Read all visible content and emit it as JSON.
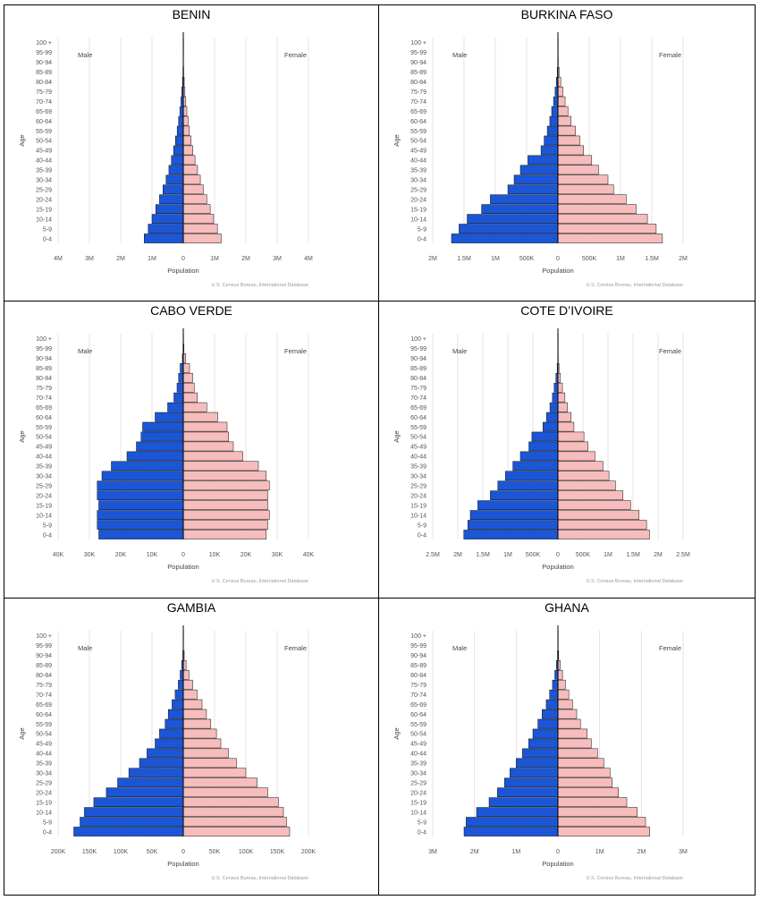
{
  "colors": {
    "male": "#1a56d6",
    "female": "#f7bcbc",
    "bar_outline": "#111111",
    "grid": "#dddddd"
  },
  "age_groups": [
    "0-4",
    "5-9",
    "10-14",
    "15-19",
    "20-24",
    "25-29",
    "30-34",
    "35-39",
    "40-44",
    "45-49",
    "50-54",
    "55-59",
    "60-64",
    "65-69",
    "70-74",
    "75-79",
    "80-84",
    "85-89",
    "90-94",
    "95-99",
    "100 +"
  ],
  "shared_labels": {
    "male": "Male",
    "female": "Female",
    "y_axis": "Age",
    "x_axis": "Population",
    "source": "U.S. Census Bureau, International Database"
  },
  "chart_data": [
    {
      "type": "bar",
      "title": "BENIN",
      "xlabel": "Population",
      "ylabel": "Age",
      "xlim": [
        -4000000,
        4000000
      ],
      "x_ticks": [
        -4000000,
        -3000000,
        -2000000,
        -1000000,
        0,
        1000000,
        2000000,
        3000000,
        4000000
      ],
      "x_tick_labels": [
        "4M",
        "3M",
        "2M",
        "1M",
        "0",
        "1M",
        "2M",
        "3M",
        "4M"
      ],
      "categories": [
        "0-4",
        "5-9",
        "10-14",
        "15-19",
        "20-24",
        "25-29",
        "30-34",
        "35-39",
        "40-44",
        "45-49",
        "50-54",
        "55-59",
        "60-64",
        "65-69",
        "70-74",
        "75-79",
        "80-84",
        "85-89",
        "90-94",
        "95-99",
        "100 +"
      ],
      "series": [
        {
          "name": "Male",
          "values": [
            1250000,
            1120000,
            1000000,
            880000,
            760000,
            650000,
            550000,
            460000,
            380000,
            310000,
            250000,
            195000,
            150000,
            110000,
            75000,
            48000,
            26000,
            11000,
            4000,
            1000,
            200
          ]
        },
        {
          "name": "Female",
          "values": [
            1210000,
            1090000,
            970000,
            860000,
            750000,
            640000,
            545000,
            455000,
            375000,
            305000,
            250000,
            195000,
            155000,
            115000,
            80000,
            52000,
            30000,
            13000,
            5000,
            1200,
            300
          ]
        }
      ]
    },
    {
      "type": "bar",
      "title": "BURKINA FASO",
      "xlabel": "Population",
      "ylabel": "Age",
      "xlim": [
        -2000000,
        2000000
      ],
      "x_ticks": [
        -2000000,
        -1500000,
        -1000000,
        -500000,
        0,
        500000,
        1000000,
        1500000,
        2000000
      ],
      "x_tick_labels": [
        "2M",
        "1.5M",
        "1M",
        "500K",
        "0",
        "500K",
        "1M",
        "1.5M",
        "2M"
      ],
      "categories": [
        "0-4",
        "5-9",
        "10-14",
        "15-19",
        "20-24",
        "25-29",
        "30-34",
        "35-39",
        "40-44",
        "45-49",
        "50-54",
        "55-59",
        "60-64",
        "65-69",
        "70-74",
        "75-79",
        "80-84",
        "85-89",
        "90-94",
        "95-99",
        "100 +"
      ],
      "series": [
        {
          "name": "Male",
          "values": [
            1700000,
            1580000,
            1450000,
            1220000,
            1080000,
            800000,
            700000,
            600000,
            480000,
            270000,
            220000,
            170000,
            130000,
            100000,
            70000,
            45000,
            25000,
            10000,
            3000,
            800,
            100
          ]
        },
        {
          "name": "Female",
          "values": [
            1670000,
            1570000,
            1430000,
            1250000,
            1090000,
            890000,
            800000,
            650000,
            540000,
            410000,
            350000,
            280000,
            210000,
            160000,
            115000,
            80000,
            45000,
            20000,
            6000,
            1500,
            200
          ]
        }
      ]
    },
    {
      "type": "bar",
      "title": "CABO VERDE",
      "xlabel": "Population",
      "ylabel": "Age",
      "xlim": [
        -40000,
        40000
      ],
      "x_ticks": [
        -40000,
        -30000,
        -20000,
        -10000,
        0,
        10000,
        20000,
        30000,
        40000
      ],
      "x_tick_labels": [
        "40K",
        "30K",
        "20K",
        "10K",
        "0",
        "10K",
        "20K",
        "30K",
        "40K"
      ],
      "categories": [
        "0-4",
        "5-9",
        "10-14",
        "15-19",
        "20-24",
        "25-29",
        "30-34",
        "35-39",
        "40-44",
        "45-49",
        "50-54",
        "55-59",
        "60-64",
        "65-69",
        "70-74",
        "75-79",
        "80-84",
        "85-89",
        "90-94",
        "95-99",
        "100 +"
      ],
      "series": [
        {
          "name": "Male",
          "values": [
            27000,
            27500,
            27500,
            27000,
            27500,
            27500,
            26000,
            23000,
            18000,
            15000,
            13500,
            13000,
            9000,
            5000,
            3000,
            2000,
            1500,
            1000,
            300,
            80,
            10
          ]
        },
        {
          "name": "Female",
          "values": [
            26500,
            27000,
            27500,
            27000,
            27000,
            27500,
            26500,
            24000,
            19000,
            16000,
            14500,
            14000,
            11000,
            7500,
            4500,
            3500,
            3000,
            2000,
            800,
            200,
            30
          ]
        }
      ]
    },
    {
      "type": "bar",
      "title": "COTE D’IVOIRE",
      "xlabel": "Population",
      "ylabel": "Age",
      "xlim": [
        -2500000,
        2500000
      ],
      "x_ticks": [
        -2500000,
        -2000000,
        -1500000,
        -1000000,
        -500000,
        0,
        500000,
        1000000,
        1500000,
        2000000,
        2500000
      ],
      "x_tick_labels": [
        "2.5M",
        "2M",
        "1.5M",
        "1M",
        "500K",
        "0",
        "500K",
        "1M",
        "1.5M",
        "2M",
        "2.5M"
      ],
      "categories": [
        "0-4",
        "5-9",
        "10-14",
        "15-19",
        "20-24",
        "25-29",
        "30-34",
        "35-39",
        "40-44",
        "45-49",
        "50-54",
        "55-59",
        "60-64",
        "65-69",
        "70-74",
        "75-79",
        "80-84",
        "85-89",
        "90-94",
        "95-99",
        "100 +"
      ],
      "series": [
        {
          "name": "Male",
          "values": [
            1880000,
            1800000,
            1750000,
            1600000,
            1350000,
            1200000,
            1050000,
            900000,
            750000,
            580000,
            520000,
            300000,
            230000,
            160000,
            110000,
            75000,
            40000,
            15000,
            4000,
            800,
            100
          ]
        },
        {
          "name": "Female",
          "values": [
            1830000,
            1770000,
            1620000,
            1450000,
            1300000,
            1150000,
            1020000,
            900000,
            740000,
            600000,
            520000,
            320000,
            260000,
            190000,
            140000,
            90000,
            50000,
            22000,
            7000,
            1500,
            200
          ]
        }
      ]
    },
    {
      "type": "bar",
      "title": "GAMBIA",
      "xlabel": "Population",
      "ylabel": "Age",
      "xlim": [
        -200000,
        200000
      ],
      "x_ticks": [
        -200000,
        -150000,
        -100000,
        -50000,
        0,
        50000,
        100000,
        150000,
        200000
      ],
      "x_tick_labels": [
        "200K",
        "150K",
        "100K",
        "50K",
        "0",
        "50K",
        "100K",
        "150K",
        "200K"
      ],
      "categories": [
        "0-4",
        "5-9",
        "10-14",
        "15-19",
        "20-24",
        "25-29",
        "30-34",
        "35-39",
        "40-44",
        "45-49",
        "50-54",
        "55-59",
        "60-64",
        "65-69",
        "70-74",
        "75-79",
        "80-84",
        "85-89",
        "90-94",
        "95-99",
        "100 +"
      ],
      "series": [
        {
          "name": "Male",
          "values": [
            175000,
            165000,
            158000,
            143000,
            123000,
            105000,
            87000,
            70000,
            58000,
            45000,
            38000,
            29000,
            24000,
            18000,
            13000,
            8000,
            5000,
            2500,
            800,
            200,
            30
          ]
        },
        {
          "name": "Female",
          "values": [
            170000,
            165000,
            160000,
            152000,
            135000,
            118000,
            100000,
            85000,
            72000,
            60000,
            53000,
            44000,
            37000,
            30000,
            22000,
            15000,
            9000,
            4500,
            1500,
            400,
            60
          ]
        }
      ]
    },
    {
      "type": "bar",
      "title": "GHANA",
      "xlabel": "Population",
      "ylabel": "Age",
      "xlim": [
        -3000000,
        3000000
      ],
      "x_ticks": [
        -3000000,
        -2000000,
        -1000000,
        0,
        1000000,
        2000000,
        3000000
      ],
      "x_tick_labels": [
        "3M",
        "2M",
        "1M",
        "0",
        "1M",
        "2M",
        "3M"
      ],
      "categories": [
        "0-4",
        "5-9",
        "10-14",
        "15-19",
        "20-24",
        "25-29",
        "30-34",
        "35-39",
        "40-44",
        "45-49",
        "50-54",
        "55-59",
        "60-64",
        "65-69",
        "70-74",
        "75-79",
        "80-84",
        "85-89",
        "90-94",
        "95-99",
        "100 +"
      ],
      "series": [
        {
          "name": "Male",
          "values": [
            2250000,
            2200000,
            1950000,
            1650000,
            1450000,
            1280000,
            1150000,
            1000000,
            850000,
            700000,
            600000,
            480000,
            380000,
            280000,
            200000,
            130000,
            75000,
            35000,
            10000,
            2000,
            300
          ]
        },
        {
          "name": "Female",
          "values": [
            2200000,
            2100000,
            1900000,
            1650000,
            1450000,
            1300000,
            1250000,
            1100000,
            950000,
            800000,
            700000,
            540000,
            450000,
            350000,
            260000,
            180000,
            110000,
            55000,
            18000,
            4000,
            600
          ]
        }
      ]
    }
  ]
}
